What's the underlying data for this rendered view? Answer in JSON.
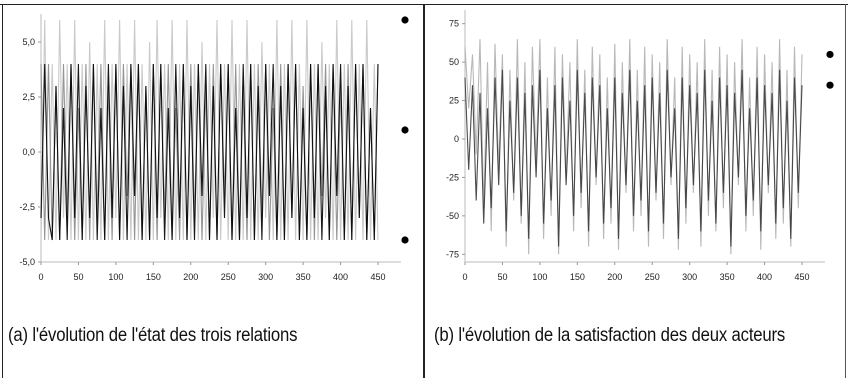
{
  "panels": [
    {
      "id": "a",
      "caption": "(a) l'évolution  de l'état des trois relations",
      "chart_data": {
        "type": "line",
        "xlim": [
          0,
          470
        ],
        "ylim": [
          -5.0,
          6.0
        ],
        "xticks": [
          0,
          50,
          100,
          150,
          200,
          250,
          300,
          350,
          400,
          450
        ],
        "xtick_labels": [
          "0",
          "50",
          "100",
          "150",
          "200",
          "250",
          "300",
          "350",
          "400",
          "450"
        ],
        "yticks": [
          -5.0,
          -2.5,
          0.0,
          2.5,
          5.0
        ],
        "ytick_labels": [
          "-5,0",
          "-2,5",
          "0,0",
          "2,5",
          "5,0"
        ],
        "grid": false,
        "legend_markers": [
          {
            "value": 6.0,
            "color": "#000000"
          },
          {
            "value": 1.0,
            "color": "#000000"
          },
          {
            "value": -4.0,
            "color": "#000000"
          }
        ],
        "series": [
          {
            "color": "#000000",
            "x": [
              0,
              5,
              10,
              15,
              20,
              25,
              30,
              35,
              40,
              45,
              50,
              55,
              60,
              65,
              70,
              75,
              80,
              85,
              90,
              95,
              100,
              105,
              110,
              115,
              120,
              125,
              130,
              135,
              140,
              145,
              150,
              155,
              160,
              165,
              170,
              175,
              180,
              185,
              190,
              195,
              200,
              205,
              210,
              215,
              220,
              225,
              230,
              235,
              240,
              245,
              250,
              255,
              260,
              265,
              270,
              275,
              280,
              285,
              290,
              295,
              300,
              305,
              310,
              315,
              320,
              325,
              330,
              335,
              340,
              345,
              350,
              355,
              360,
              365,
              370,
              375,
              380,
              385,
              390,
              395,
              400,
              405,
              410,
              415,
              420,
              425,
              430,
              435,
              440,
              445,
              450
            ],
            "values": [
              -3,
              4,
              -3,
              -4,
              3,
              -4,
              2,
              -4,
              4,
              -3,
              4,
              -4,
              3,
              -3,
              4,
              -4,
              2,
              -4,
              4,
              -3,
              4,
              -4,
              3,
              -4,
              4,
              -2,
              4,
              -4,
              3,
              -4,
              4,
              -3,
              4,
              -4,
              2,
              -4,
              4,
              -3,
              4,
              -4,
              3,
              -4,
              4,
              -2,
              4,
              -4,
              3,
              -4,
              4,
              -3,
              4,
              -4,
              2,
              -4,
              4,
              -3,
              4,
              -4,
              3,
              -4,
              4,
              -2,
              4,
              -4,
              3,
              -4,
              4,
              -3,
              4,
              -4,
              2,
              -4,
              4,
              -3,
              4,
              -4,
              3,
              -4,
              4,
              -2,
              4,
              -4,
              3,
              -4,
              4,
              -3,
              4,
              -4,
              2,
              -4,
              4
            ]
          },
          {
            "color": "#8a8a8a",
            "x": [
              0,
              5,
              10,
              15,
              20,
              25,
              30,
              35,
              40,
              45,
              50,
              55,
              60,
              65,
              70,
              75,
              80,
              85,
              90,
              95,
              100,
              105,
              110,
              115,
              120,
              125,
              130,
              135,
              140,
              145,
              150,
              155,
              160,
              165,
              170,
              175,
              180,
              185,
              190,
              195,
              200,
              205,
              210,
              215,
              220,
              225,
              230,
              235,
              240,
              245,
              250,
              255,
              260,
              265,
              270,
              275,
              280,
              285,
              290,
              295,
              300,
              305,
              310,
              315,
              320,
              325,
              330,
              335,
              340,
              345,
              350,
              355,
              360,
              365,
              370,
              375,
              380,
              385,
              390,
              395,
              400,
              405,
              410,
              415,
              420,
              425,
              430,
              435,
              440,
              445,
              450
            ],
            "values": [
              4,
              -4,
              4,
              -4,
              3,
              -4,
              4,
              -3,
              4,
              -4,
              2,
              -4,
              4,
              -4,
              4,
              -3,
              4,
              -4,
              3,
              -4,
              4,
              -4,
              4,
              -2,
              4,
              -4,
              4,
              -4,
              3,
              -4,
              4,
              -4,
              4,
              -3,
              4,
              -4,
              2,
              -4,
              4,
              -4,
              4,
              -3,
              4,
              -4,
              3,
              -4,
              4,
              -4,
              4,
              -2,
              4,
              -4,
              4,
              -4,
              3,
              -4,
              4,
              -4,
              4,
              -3,
              4,
              -4,
              2,
              -4,
              4,
              -4,
              4,
              -3,
              4,
              -4,
              3,
              -4,
              4,
              -4,
              4,
              -2,
              4,
              -4,
              4,
              -4,
              3,
              -4,
              4,
              -4,
              4,
              -3,
              4,
              -4,
              2,
              -4,
              4
            ]
          },
          {
            "color": "#c4c4c4",
            "x": [
              0,
              5,
              10,
              15,
              20,
              25,
              30,
              35,
              40,
              45,
              50,
              55,
              60,
              65,
              70,
              75,
              80,
              85,
              90,
              95,
              100,
              105,
              110,
              115,
              120,
              125,
              130,
              135,
              140,
              145,
              150,
              155,
              160,
              165,
              170,
              175,
              180,
              185,
              190,
              195,
              200,
              205,
              210,
              215,
              220,
              225,
              230,
              235,
              240,
              245,
              250,
              255,
              260,
              265,
              270,
              275,
              280,
              285,
              290,
              295,
              300,
              305,
              310,
              315,
              320,
              325,
              330,
              335,
              340,
              345,
              350,
              355,
              360,
              365,
              370,
              375,
              380,
              385,
              390,
              395,
              400,
              405,
              410,
              415,
              420,
              425,
              430,
              435,
              440,
              445,
              450
            ],
            "values": [
              -4,
              6,
              -4,
              4,
              -4,
              6,
              -3,
              4,
              -4,
              6,
              -4,
              4,
              -4,
              5,
              -4,
              4,
              -4,
              6,
              -4,
              4,
              -3,
              6,
              -4,
              4,
              -4,
              6,
              -4,
              4,
              -4,
              5,
              -4,
              6,
              -3,
              4,
              -4,
              6,
              -4,
              4,
              -4,
              6,
              -4,
              4,
              -4,
              5,
              -4,
              4,
              -3,
              6,
              -4,
              4,
              -4,
              6,
              -4,
              4,
              -4,
              6,
              -4,
              4,
              -4,
              5,
              -3,
              4,
              -4,
              6,
              -4,
              4,
              -4,
              6,
              -4,
              4,
              -4,
              6,
              -4,
              4,
              -4,
              5,
              -3,
              4,
              -4,
              6,
              -4,
              4,
              -4,
              6,
              -4,
              4,
              -4,
              6,
              -4,
              4,
              -4
            ]
          }
        ]
      }
    },
    {
      "id": "b",
      "caption": "(b) l'évolution  de la satisfaction des deux acteurs",
      "chart_data": {
        "type": "line",
        "xlim": [
          0,
          470
        ],
        "ylim": [
          -80,
          80
        ],
        "xticks": [
          0,
          50,
          100,
          150,
          200,
          250,
          300,
          350,
          400,
          450
        ],
        "xtick_labels": [
          "0",
          "50",
          "100",
          "150",
          "200",
          "250",
          "300",
          "350",
          "400",
          "450"
        ],
        "yticks": [
          -75,
          -50,
          -25,
          0,
          25,
          50,
          75
        ],
        "ytick_labels": [
          "-75",
          "-50",
          "-25",
          "0",
          "25",
          "50",
          "75"
        ],
        "grid": false,
        "legend_markers": [
          {
            "value": 55,
            "color": "#000000"
          },
          {
            "value": 35,
            "color": "#000000"
          }
        ],
        "series": [
          {
            "color": "#3a3a3a",
            "x": [
              0,
              5,
              10,
              15,
              20,
              25,
              30,
              35,
              40,
              45,
              50,
              55,
              60,
              65,
              70,
              75,
              80,
              85,
              90,
              95,
              100,
              105,
              110,
              115,
              120,
              125,
              130,
              135,
              140,
              145,
              150,
              155,
              160,
              165,
              170,
              175,
              180,
              185,
              190,
              195,
              200,
              205,
              210,
              215,
              220,
              225,
              230,
              235,
              240,
              245,
              250,
              255,
              260,
              265,
              270,
              275,
              280,
              285,
              290,
              295,
              300,
              305,
              310,
              315,
              320,
              325,
              330,
              335,
              340,
              345,
              350,
              355,
              360,
              365,
              370,
              375,
              380,
              385,
              390,
              395,
              400,
              405,
              410,
              415,
              420,
              425,
              430,
              435,
              440,
              445,
              450
            ],
            "values": [
              40,
              -20,
              35,
              -40,
              30,
              -55,
              20,
              -45,
              40,
              -30,
              45,
              -60,
              25,
              -35,
              40,
              -50,
              30,
              -65,
              35,
              -25,
              45,
              -55,
              20,
              -40,
              35,
              -70,
              40,
              -30,
              25,
              -50,
              45,
              -35,
              30,
              -60,
              40,
              -25,
              35,
              -55,
              20,
              -45,
              40,
              -65,
              30,
              -30,
              45,
              -50,
              25,
              -40,
              35,
              -60,
              40,
              -35,
              30,
              -55,
              45,
              -25,
              20,
              -65,
              40,
              -45,
              35,
              -30,
              30,
              -60,
              45,
              -40,
              25,
              -55,
              40,
              -35,
              35,
              -70,
              30,
              -25,
              45,
              -50,
              20,
              -40,
              40,
              -60,
              35,
              -30,
              30,
              -55,
              45,
              -45,
              25,
              -65,
              40,
              -35,
              35
            ]
          },
          {
            "color": "#b0b0b0",
            "x": [
              0,
              5,
              10,
              15,
              20,
              25,
              30,
              35,
              40,
              45,
              50,
              55,
              60,
              65,
              70,
              75,
              80,
              85,
              90,
              95,
              100,
              105,
              110,
              115,
              120,
              125,
              130,
              135,
              140,
              145,
              150,
              155,
              160,
              165,
              170,
              175,
              180,
              185,
              190,
              195,
              200,
              205,
              210,
              215,
              220,
              225,
              230,
              235,
              240,
              245,
              250,
              255,
              260,
              265,
              270,
              275,
              280,
              285,
              290,
              295,
              300,
              305,
              310,
              315,
              320,
              325,
              330,
              335,
              340,
              345,
              350,
              355,
              360,
              365,
              370,
              375,
              380,
              385,
              390,
              395,
              400,
              405,
              410,
              415,
              420,
              425,
              430,
              435,
              440,
              445,
              450
            ],
            "values": [
              60,
              20,
              55,
              -10,
              65,
              -45,
              50,
              -60,
              62,
              -20,
              55,
              -70,
              45,
              -40,
              65,
              -55,
              50,
              -75,
              60,
              -15,
              65,
              -65,
              40,
              -50,
              60,
              -75,
              55,
              -25,
              50,
              -60,
              65,
              -45,
              45,
              -70,
              60,
              -30,
              55,
              -65,
              40,
              -55,
              62,
              -72,
              50,
              -35,
              65,
              -60,
              45,
              -50,
              60,
              -70,
              55,
              -40,
              50,
              -65,
              65,
              -30,
              40,
              -72,
              60,
              -55,
              55,
              -35,
              50,
              -70,
              65,
              -50,
              45,
              -60,
              60,
              -45,
              55,
              -75,
              50,
              -30,
              65,
              -60,
              40,
              -50,
              60,
              -72,
              55,
              -35,
              50,
              -65,
              65,
              -55,
              45,
              -70,
              60,
              -45,
              55
            ]
          }
        ]
      }
    }
  ]
}
